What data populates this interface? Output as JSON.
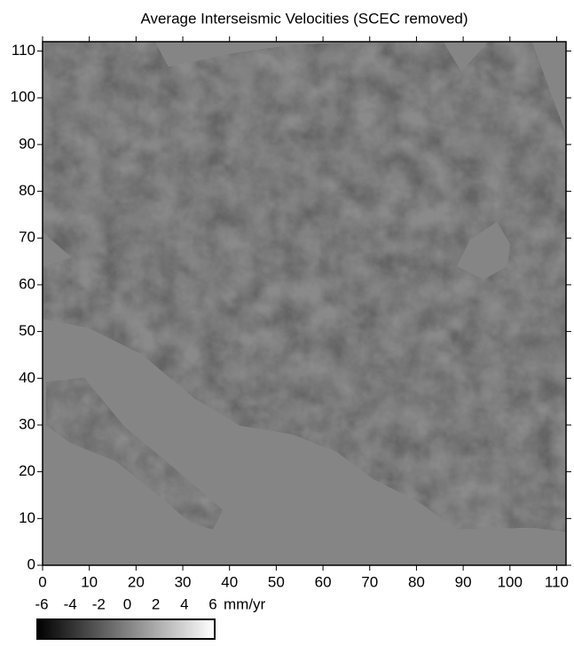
{
  "chart_data": {
    "type": "image",
    "title": "Average Interseismic Velocities (SCEC removed)",
    "xlim": [
      0,
      112
    ],
    "ylim": [
      0,
      112
    ],
    "xticks": [
      0,
      10,
      20,
      30,
      40,
      50,
      60,
      70,
      80,
      90,
      100,
      110
    ],
    "yticks": [
      0,
      10,
      20,
      30,
      40,
      50,
      60,
      70,
      80,
      90,
      100,
      110
    ],
    "colorbar": {
      "clim": [
        -6,
        6
      ],
      "ticks": [
        -6,
        -4,
        -2,
        0,
        2,
        4,
        6
      ],
      "unit": "mm/yr",
      "colors": [
        "#000000",
        "#ffffff"
      ]
    }
  }
}
